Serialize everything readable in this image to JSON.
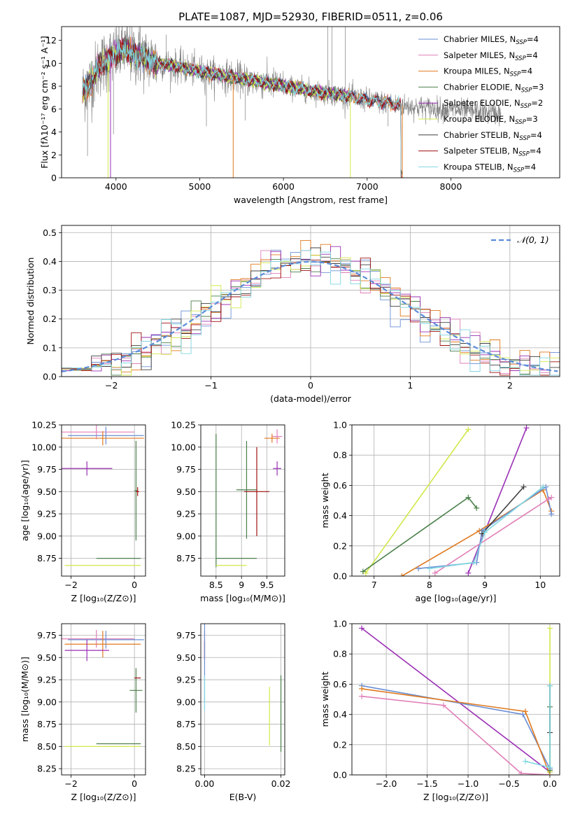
{
  "title": "PLATE=1087, MJD=52930, FIBERID=0511, z=0.06",
  "colors": {
    "chabrier_miles": "#6a8fd4",
    "salpeter_miles": "#e07fb8",
    "kroupa_miles": "#e07a1f",
    "chabrier_elodie": "#4a7f4a",
    "salpeter_elodie": "#9b2fb5",
    "kroupa_elodie": "#d2e84a",
    "chabrier_stelib": "#404040",
    "salpeter_stelib": "#a01010",
    "kroupa_stelib": "#7fd6e0",
    "data": "#808080",
    "normal": "#5b8bd9"
  },
  "legend_top": [
    {
      "label": "Chabrier MILES, N",
      "sub": "SSP",
      "tail": "=4",
      "color_key": "chabrier_miles"
    },
    {
      "label": "Salpeter MILES, N",
      "sub": "SSP",
      "tail": "=4",
      "color_key": "salpeter_miles"
    },
    {
      "label": "Kroupa MILES, N",
      "sub": "SSP",
      "tail": "=4",
      "color_key": "kroupa_miles"
    },
    {
      "label": "Chabrier ELODIE, N",
      "sub": "SSP",
      "tail": "=3",
      "color_key": "chabrier_elodie"
    },
    {
      "label": "Salpeter ELODIE, N",
      "sub": "SSP",
      "tail": "=2",
      "color_key": "salpeter_elodie"
    },
    {
      "label": "Kroupa ELODIE, N",
      "sub": "SSP",
      "tail": "=3",
      "color_key": "kroupa_elodie"
    },
    {
      "label": "Chabrier STELIB, N",
      "sub": "SSP",
      "tail": "=4",
      "color_key": "chabrier_stelib"
    },
    {
      "label": "Salpeter STELIB, N",
      "sub": "SSP",
      "tail": "=4",
      "color_key": "salpeter_stelib"
    },
    {
      "label": "Kroupa STELIB, N",
      "sub": "SSP",
      "tail": "=4",
      "color_key": "kroupa_stelib"
    }
  ],
  "chart_data": [
    {
      "type": "line",
      "id": "spectrum",
      "xlabel": "wavelength [Angstrom, rest frame]",
      "ylabel": "Flux [fλ10⁻¹⁷ erg cm⁻² s⁻¹ A⁻¹]",
      "xlim": [
        3350,
        9300
      ],
      "ylim": [
        0,
        13.2
      ],
      "xticks": [
        4000,
        5000,
        6000,
        7000,
        8000
      ],
      "yticks": [
        0,
        2,
        4,
        6,
        8,
        10,
        12
      ],
      "model_continuum": {
        "x": [
          3600,
          3700,
          3800,
          3900,
          4000,
          4100,
          4200,
          4300,
          4400,
          4500,
          4600,
          4800,
          5000,
          5200,
          5400,
          5600,
          5800,
          6000,
          6200,
          6400,
          6600,
          6800,
          7000,
          7200,
          7400
        ],
        "y": [
          7.5,
          8.3,
          9.8,
          10.3,
          10.8,
          11.2,
          10.8,
          10.6,
          10.3,
          10.0,
          9.9,
          9.6,
          9.3,
          9.0,
          8.8,
          8.5,
          8.3,
          8.0,
          7.8,
          7.5,
          7.3,
          7.1,
          6.8,
          6.6,
          6.3
        ]
      }
    },
    {
      "type": "histogram",
      "id": "residuals",
      "xlabel": "(data-model)/error",
      "ylabel": "Normed distribution",
      "xlim": [
        -2.5,
        2.5
      ],
      "ylim": [
        0,
        0.525
      ],
      "xticks": [
        -2,
        -1,
        0,
        1,
        2
      ],
      "yticks": [
        0.0,
        0.1,
        0.2,
        0.3,
        0.4,
        0.5
      ],
      "legend": "𝒩(0, 1)",
      "bin_width": 0.1,
      "bin_start": -2.5,
      "series_hint": "normal-like residual histograms, one per model"
    },
    {
      "type": "scatter",
      "id": "age_vs_Z",
      "xlabel": "Z [log₁₀(Z/Z⊙)]",
      "ylabel": "age  [log₁₀(age/yr)]",
      "xlim": [
        -2.3,
        0.35
      ],
      "ylim": [
        8.55,
        10.25
      ],
      "xticks": [
        -2,
        0
      ],
      "yticks": [
        8.75,
        9.0,
        9.25,
        9.5,
        9.75,
        10.0,
        10.25
      ],
      "points": [
        {
          "x": -1.2,
          "y": 10.17,
          "xerr": 1.2,
          "yerr": 0.08,
          "color_key": "salpeter_miles"
        },
        {
          "x": -0.9,
          "y": 10.13,
          "xerr": 1.2,
          "yerr": 0.1,
          "color_key": "chabrier_miles"
        },
        {
          "x": -1.0,
          "y": 10.1,
          "xerr": 1.3,
          "yerr": 0.08,
          "color_key": "kroupa_miles"
        },
        {
          "x": -1.5,
          "y": 9.76,
          "xerr": 0.8,
          "yerr": 0.08,
          "color_key": "salpeter_elodie"
        },
        {
          "x": 0.05,
          "y": 9.51,
          "xerr": 0.05,
          "yerr": 0.56,
          "color_key": "chabrier_elodie"
        },
        {
          "x": 0.1,
          "y": 9.5,
          "xerr": 0.05,
          "yerr": 0.05,
          "color_key": "salpeter_stelib"
        },
        {
          "x": -0.5,
          "y": 8.75,
          "xerr": 0.7,
          "yerr": 0.0,
          "color_key": "chabrier_elodie"
        },
        {
          "x": -1.0,
          "y": 8.67,
          "xerr": 1.2,
          "yerr": 0.0,
          "color_key": "kroupa_elodie"
        }
      ]
    },
    {
      "type": "scatter",
      "id": "age_vs_mass",
      "xlabel": "mass [log₁₀(M/M⊙)]",
      "ylabel": "",
      "xlim": [
        8.2,
        9.85
      ],
      "ylim": [
        8.55,
        10.25
      ],
      "xticks": [
        8.5,
        9.0,
        9.5
      ],
      "yticks": [
        8.75,
        9.0,
        9.25,
        9.5,
        9.75,
        10.0,
        10.25
      ],
      "points": [
        {
          "x": 9.7,
          "y": 10.12,
          "xerr": 0.1,
          "yerr": 0.08,
          "color_key": "salpeter_miles"
        },
        {
          "x": 9.6,
          "y": 10.1,
          "xerr": 0.15,
          "yerr": 0.05,
          "color_key": "kroupa_miles"
        },
        {
          "x": 9.7,
          "y": 9.76,
          "xerr": 0.08,
          "yerr": 0.08,
          "color_key": "salpeter_elodie"
        },
        {
          "x": 9.1,
          "y": 9.52,
          "xerr": 0.2,
          "yerr": 0.55,
          "color_key": "chabrier_elodie"
        },
        {
          "x": 9.3,
          "y": 9.5,
          "xerr": 0.25,
          "yerr": 0.5,
          "color_key": "salpeter_stelib"
        },
        {
          "x": 8.5,
          "y": 9.4,
          "xerr": 0.0,
          "yerr": 0.75,
          "color_key": "chabrier_elodie"
        },
        {
          "x": 8.9,
          "y": 8.75,
          "xerr": 0.4,
          "yerr": 0.0,
          "color_key": "chabrier_elodie"
        },
        {
          "x": 8.8,
          "y": 8.67,
          "xerr": 0.3,
          "yerr": 0.0,
          "color_key": "kroupa_elodie"
        }
      ]
    },
    {
      "type": "line",
      "id": "weight_vs_age",
      "xlabel": "age  [log₁₀(age/yr)]",
      "ylabel": "mass weight",
      "xlim": [
        6.6,
        10.35
      ],
      "ylim": [
        0,
        1.0
      ],
      "xticks": [
        7,
        8,
        9,
        10
      ],
      "yticks": [
        0.0,
        0.2,
        0.4,
        0.6,
        0.8,
        1.0
      ],
      "series": [
        {
          "color_key": "kroupa_elodie",
          "x": [
            6.85,
            8.7
          ],
          "y": [
            0.02,
            0.97
          ]
        },
        {
          "color_key": "salpeter_elodie",
          "x": [
            8.7,
            9.75
          ],
          "y": [
            0.02,
            0.98
          ]
        },
        {
          "color_key": "chabrier_elodie",
          "x": [
            6.8,
            8.7,
            8.85
          ],
          "y": [
            0.03,
            0.52,
            0.45
          ]
        },
        {
          "color_key": "kroupa_miles",
          "x": [
            7.5,
            8.9,
            10.05,
            10.2
          ],
          "y": [
            0.0,
            0.3,
            0.57,
            0.43
          ]
        },
        {
          "color_key": "chabrier_miles",
          "x": [
            7.8,
            8.85,
            8.95,
            10.1,
            10.2
          ],
          "y": [
            0.05,
            0.09,
            0.3,
            0.59,
            0.41
          ]
        },
        {
          "color_key": "salpeter_miles",
          "x": [
            8.1,
            10.15,
            10.2
          ],
          "y": [
            0.02,
            0.51,
            0.52
          ]
        },
        {
          "color_key": "chabrier_stelib",
          "x": [
            8.95,
            9.7
          ],
          "y": [
            0.28,
            0.59
          ]
        },
        {
          "color_key": "kroupa_stelib",
          "x": [
            8.0,
            8.8,
            9.0,
            10.05
          ],
          "y": [
            0.05,
            0.09,
            0.29,
            0.59
          ]
        }
      ]
    },
    {
      "type": "scatter",
      "id": "mass_vs_Z",
      "xlabel": "Z [log₁₀(Z/Z⊙)]",
      "ylabel": "mass [log₁₀(M/M⊙)]",
      "xlim": [
        -2.3,
        0.35
      ],
      "ylim": [
        8.18,
        9.88
      ],
      "xticks": [
        -2,
        0
      ],
      "yticks": [
        8.25,
        8.5,
        8.75,
        9.0,
        9.25,
        9.5,
        9.75
      ],
      "points": [
        {
          "x": -1.2,
          "y": 9.71,
          "xerr": 1.2,
          "yerr": 0.1,
          "color_key": "salpeter_miles"
        },
        {
          "x": -0.9,
          "y": 9.7,
          "xerr": 1.2,
          "yerr": 0.1,
          "color_key": "chabrier_miles"
        },
        {
          "x": -1.0,
          "y": 9.65,
          "xerr": 1.2,
          "yerr": 0.15,
          "color_key": "kroupa_miles"
        },
        {
          "x": -1.5,
          "y": 9.58,
          "xerr": 0.7,
          "yerr": 0.12,
          "color_key": "salpeter_elodie"
        },
        {
          "x": 0.05,
          "y": 9.13,
          "xerr": 0.2,
          "yerr": 0.25,
          "color_key": "chabrier_elodie"
        },
        {
          "x": 0.1,
          "y": 9.27,
          "xerr": 0.1,
          "yerr": 0.0,
          "color_key": "salpeter_stelib"
        },
        {
          "x": -0.5,
          "y": 8.53,
          "xerr": 0.7,
          "yerr": 0.0,
          "color_key": "chabrier_elodie"
        },
        {
          "x": -1.0,
          "y": 8.5,
          "xerr": 1.2,
          "yerr": 0.0,
          "color_key": "kroupa_elodie"
        }
      ]
    },
    {
      "type": "scatter",
      "id": "mass_vs_ebv",
      "xlabel": "E(B-V)",
      "ylabel": "",
      "xlim": [
        -0.001,
        0.021
      ],
      "ylim": [
        8.18,
        9.88
      ],
      "xticks": [
        0.0,
        0.02
      ],
      "xticklabels": [
        "0.00",
        "0.02"
      ],
      "yticks": [
        8.25,
        8.5,
        8.75,
        9.0,
        9.25,
        9.5,
        9.75
      ],
      "points": [
        {
          "x": 0.0,
          "y": 9.65,
          "xerr": 0.0,
          "yerr": 0.15,
          "color_key": "salpeter_miles"
        },
        {
          "x": 0.0,
          "y": 9.58,
          "xerr": 0.0,
          "yerr": 0.1,
          "color_key": "salpeter_stelib"
        },
        {
          "x": 0.0,
          "y": 9.45,
          "xerr": 0.0,
          "yerr": 0.45,
          "color_key": "chabrier_miles"
        },
        {
          "x": 0.0,
          "y": 9.1,
          "xerr": 0.0,
          "yerr": 0.2,
          "color_key": "kroupa_stelib"
        },
        {
          "x": 0.017,
          "y": 8.84,
          "xerr": 0.0,
          "yerr": 0.33,
          "color_key": "kroupa_elodie"
        },
        {
          "x": 0.02,
          "y": 8.87,
          "xerr": 0.0,
          "yerr": 0.43,
          "color_key": "chabrier_elodie"
        }
      ]
    },
    {
      "type": "line",
      "id": "weight_vs_Z",
      "xlabel": "Z [log₁₀(Z/Z⊙)]",
      "ylabel": "mass weight",
      "xlim": [
        -2.42,
        0.12
      ],
      "ylim": [
        0,
        1.0
      ],
      "xticks": [
        -2.0,
        -1.5,
        -1.0,
        -0.5,
        0.0
      ],
      "xticklabels": [
        "−2.0",
        "−1.5",
        "−1.0",
        "−0.5",
        "0.0"
      ],
      "yticks": [
        0.0,
        0.2,
        0.4,
        0.6,
        0.8,
        1.0
      ],
      "series": [
        {
          "color_key": "salpeter_elodie",
          "x": [
            -2.3,
            0.0
          ],
          "y": [
            0.97,
            0.02
          ]
        },
        {
          "color_key": "chabrier_miles",
          "x": [
            -2.3,
            -0.33,
            0.0
          ],
          "y": [
            0.59,
            0.4,
            0.04
          ]
        },
        {
          "color_key": "kroupa_miles",
          "x": [
            -2.3,
            -0.3,
            0.0
          ],
          "y": [
            0.57,
            0.42,
            0.0
          ]
        },
        {
          "color_key": "salpeter_miles",
          "x": [
            -2.3,
            -1.3,
            -0.35,
            0.0
          ],
          "y": [
            0.52,
            0.46,
            0.01,
            0.0
          ]
        },
        {
          "color_key": "kroupa_elodie",
          "x": [
            0.0,
            0.0
          ],
          "y": [
            0.02,
            0.97
          ]
        },
        {
          "color_key": "chabrier_elodie",
          "x": [
            0.0,
            0.0
          ],
          "y": [
            0.03,
            0.45
          ]
        },
        {
          "color_key": "chabrier_stelib",
          "x": [
            0.0,
            0.0
          ],
          "y": [
            0.28,
            0.59
          ]
        },
        {
          "color_key": "kroupa_stelib",
          "x": [
            -0.3,
            0.0,
            0.0
          ],
          "y": [
            0.09,
            0.05,
            0.59
          ]
        }
      ]
    }
  ]
}
